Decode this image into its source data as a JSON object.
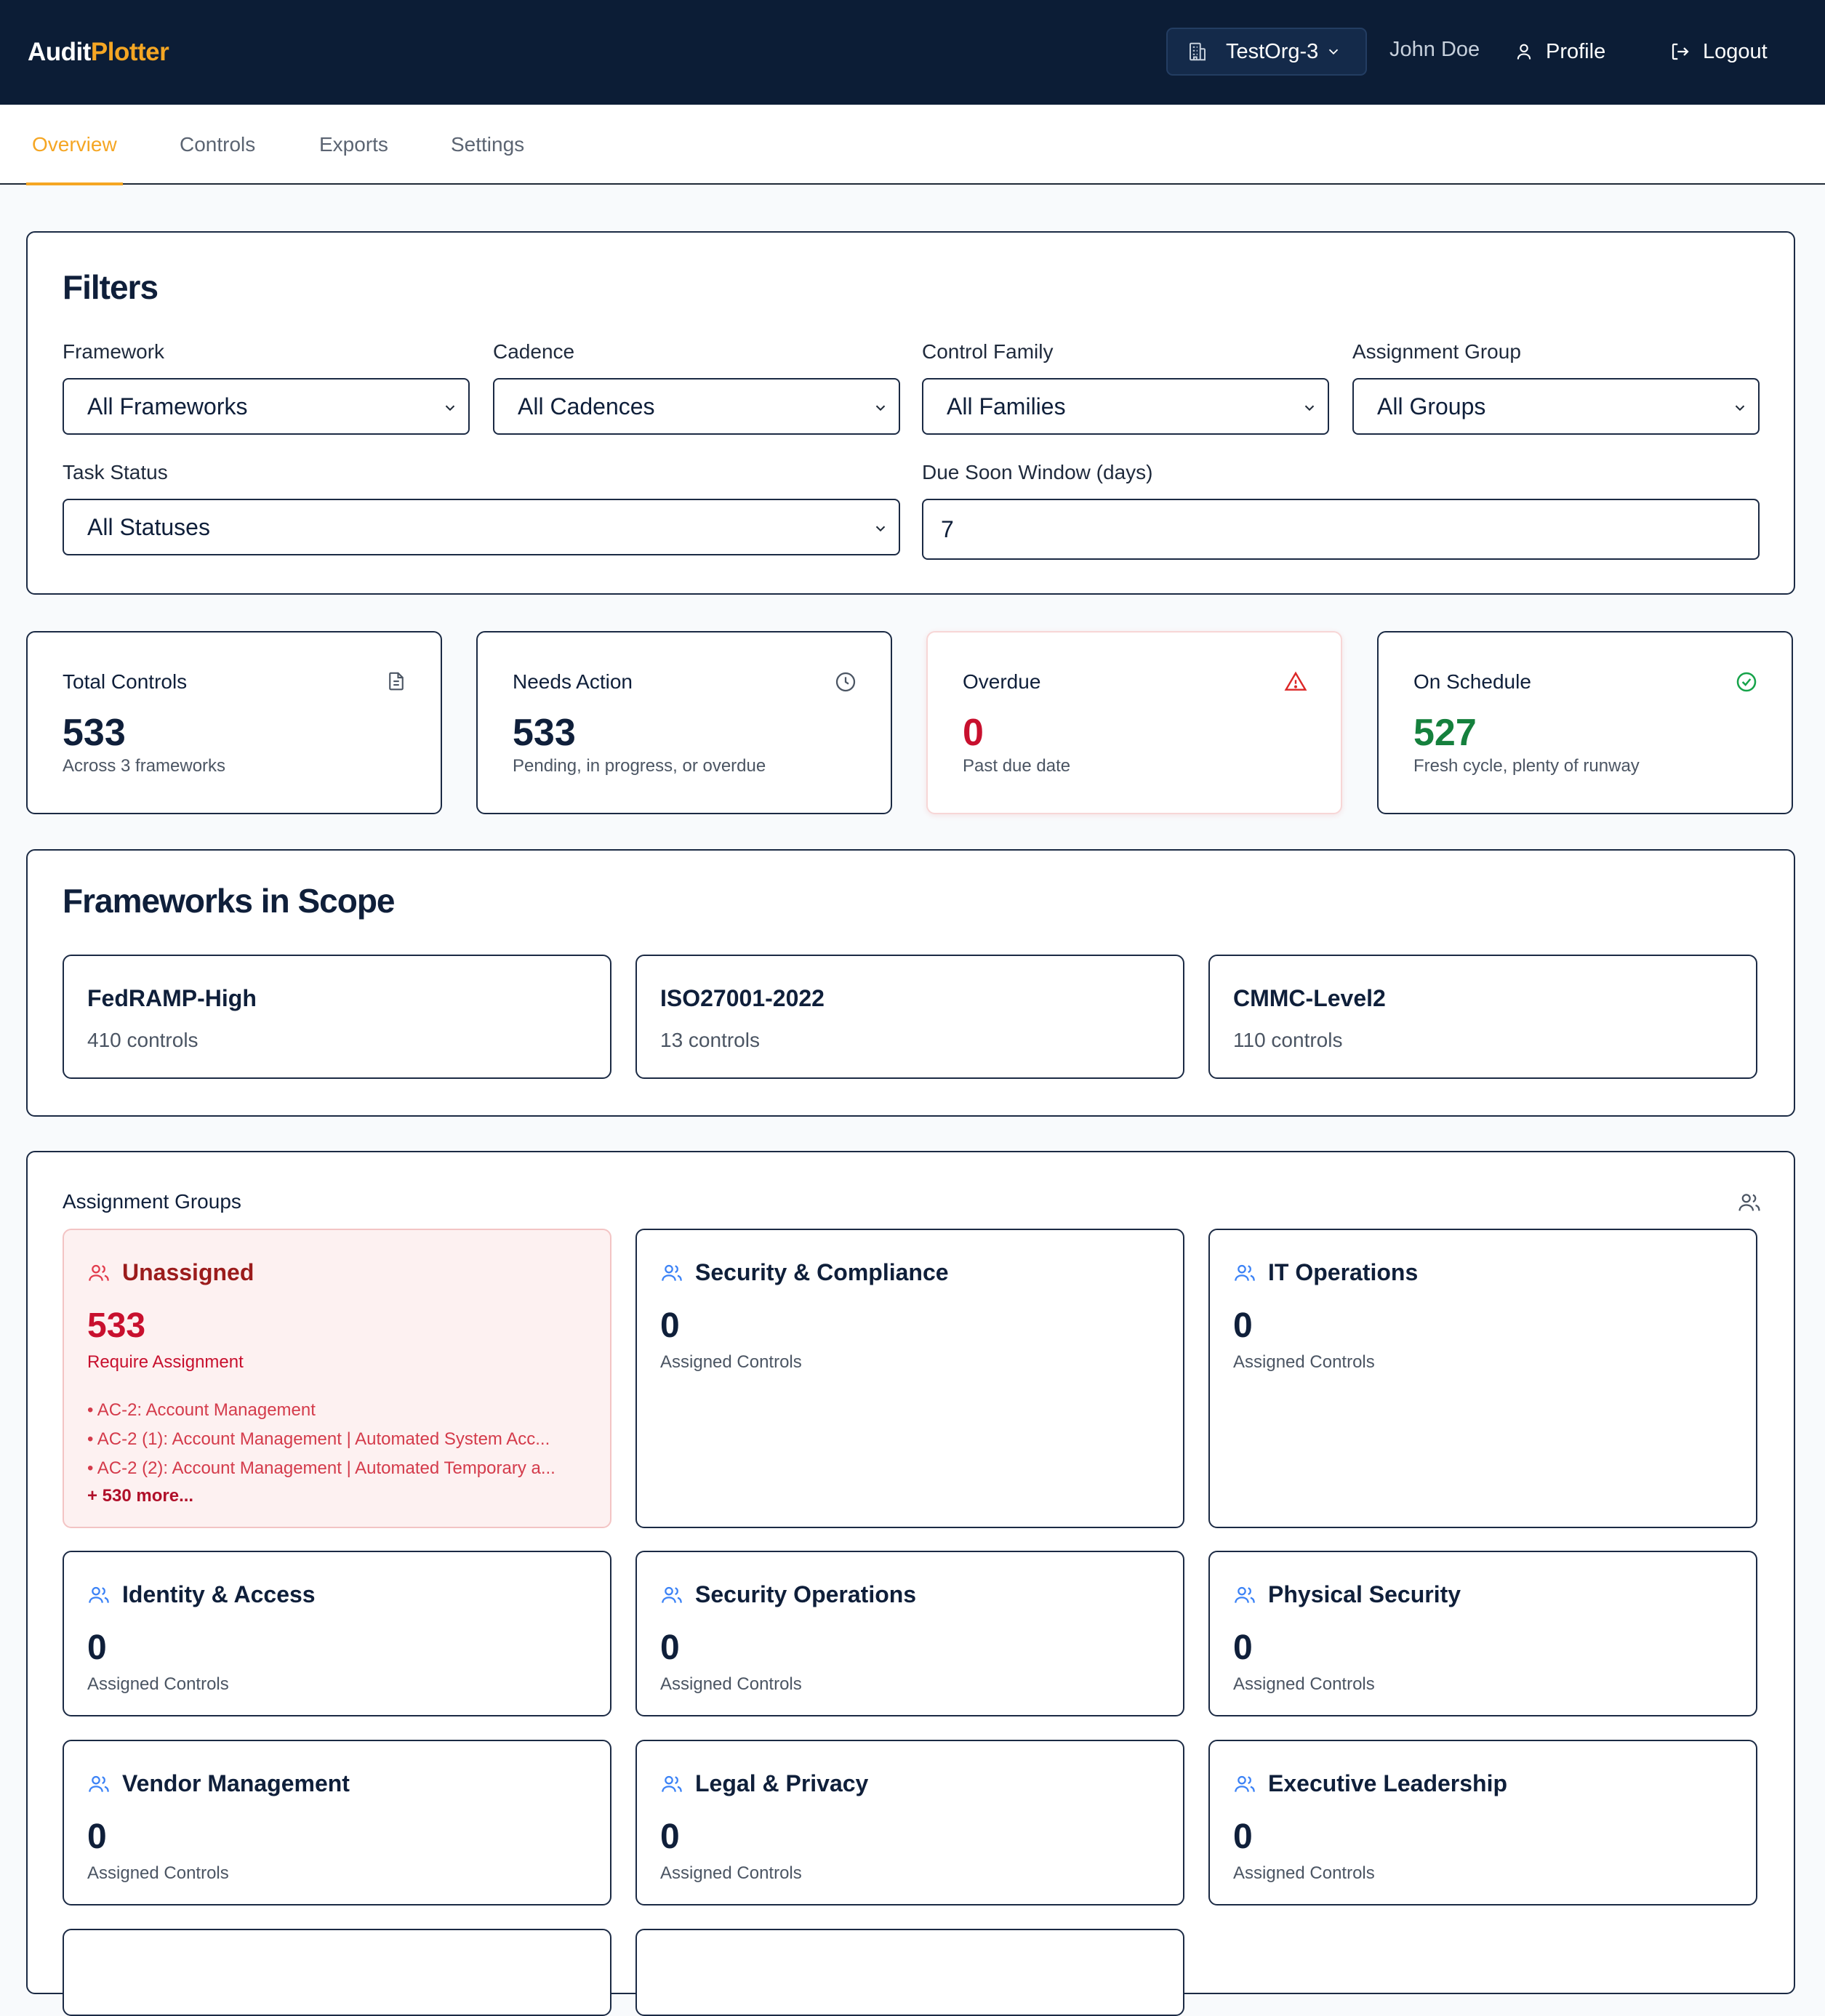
{
  "header": {
    "logo_part1": "Audit",
    "logo_part2": "Plotter",
    "org": "TestOrg-3",
    "user": "John Doe",
    "profile_label": "Profile",
    "logout_label": "Logout"
  },
  "tabs": [
    {
      "label": "Overview",
      "active": true
    },
    {
      "label": "Controls",
      "active": false
    },
    {
      "label": "Exports",
      "active": false
    },
    {
      "label": "Settings",
      "active": false
    }
  ],
  "filters": {
    "title": "Filters",
    "framework": {
      "label": "Framework",
      "value": "All Frameworks"
    },
    "cadence": {
      "label": "Cadence",
      "value": "All Cadences"
    },
    "family": {
      "label": "Control Family",
      "value": "All Families"
    },
    "group": {
      "label": "Assignment Group",
      "value": "All Groups"
    },
    "status": {
      "label": "Task Status",
      "value": "All Statuses"
    },
    "window": {
      "label": "Due Soon Window (days)",
      "value": "7"
    }
  },
  "stats": {
    "total": {
      "title": "Total Controls",
      "value": "533",
      "sub": "Across 3 frameworks",
      "icon": "document-icon"
    },
    "needs_action": {
      "title": "Needs Action",
      "value": "533",
      "sub": "Pending, in progress, or overdue",
      "icon": "clock-icon"
    },
    "overdue": {
      "title": "Overdue",
      "value": "0",
      "sub": "Past due date",
      "icon": "warning-triangle-icon",
      "color": "#c8102e"
    },
    "on_schedule": {
      "title": "On Schedule",
      "value": "527",
      "sub": "Fresh cycle, plenty of runway",
      "icon": "check-circle-icon",
      "color": "#15803d"
    }
  },
  "frameworks": {
    "title": "Frameworks in Scope",
    "items": [
      {
        "name": "FedRAMP-High",
        "count": "410 controls"
      },
      {
        "name": "ISO27001-2022",
        "count": "13 controls"
      },
      {
        "name": "CMMC-Level2",
        "count": "110 controls"
      }
    ]
  },
  "groups": {
    "title": "Assignment Groups",
    "unassigned": {
      "name": "Unassigned",
      "value": "533",
      "sub": "Require Assignment",
      "items": [
        "• AC-2: Account Management",
        "• AC-2 (1): Account Management | Automated System Acc...",
        "• AC-2 (2): Account Management | Automated Temporary a..."
      ],
      "more": "+ 530 more..."
    },
    "items": [
      {
        "name": "Security & Compliance",
        "value": "0",
        "sub": "Assigned Controls"
      },
      {
        "name": "IT Operations",
        "value": "0",
        "sub": "Assigned Controls"
      },
      {
        "name": "Identity & Access",
        "value": "0",
        "sub": "Assigned Controls"
      },
      {
        "name": "Security Operations",
        "value": "0",
        "sub": "Assigned Controls"
      },
      {
        "name": "Physical Security",
        "value": "0",
        "sub": "Assigned Controls"
      },
      {
        "name": "Vendor Management",
        "value": "0",
        "sub": "Assigned Controls"
      },
      {
        "name": "Legal & Privacy",
        "value": "0",
        "sub": "Assigned Controls"
      },
      {
        "name": "Executive Leadership",
        "value": "0",
        "sub": "Assigned Controls"
      }
    ]
  },
  "colors": {
    "accent": "#f5a623",
    "navy": "#0c1d36",
    "danger": "#c8102e",
    "success": "#15803d",
    "group_icon": "#3b82f6"
  }
}
